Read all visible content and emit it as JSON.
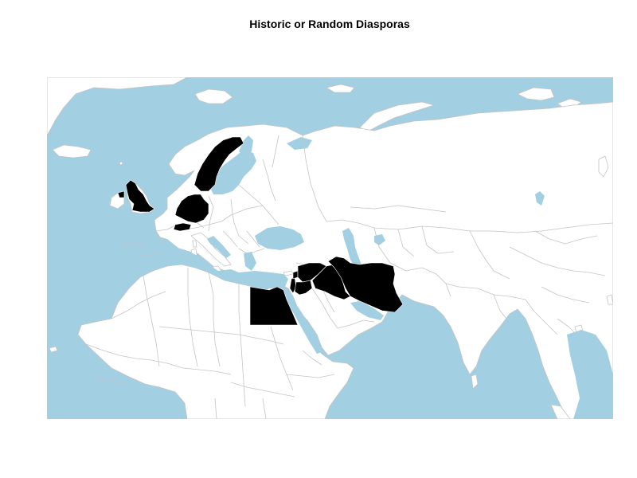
{
  "title": "Historic or Random Diasporas",
  "colors": {
    "ocean": "#a2cfe1",
    "land": "#ffffff",
    "border": "#c4c4c4",
    "highlight": "#000000"
  },
  "highlighted_countries": [
    "United Kingdom",
    "Sweden",
    "Germany",
    "Switzerland",
    "Egypt",
    "Israel",
    "Lebanon",
    "Syria",
    "Jordan",
    "Iraq",
    "Iran"
  ]
}
